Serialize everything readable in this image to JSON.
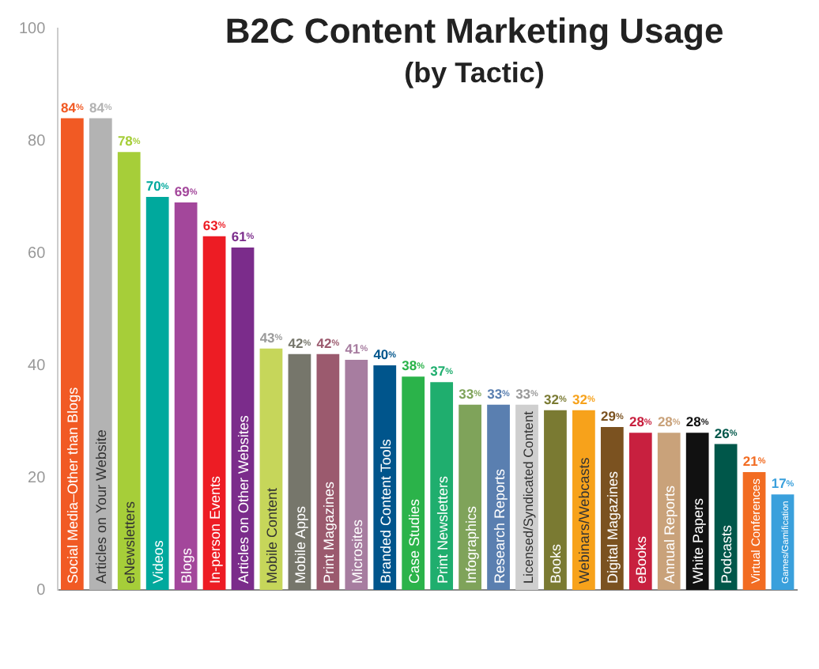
{
  "chart_data": {
    "type": "bar",
    "title": "B2C Content Marketing Usage",
    "subtitle": "(by Tactic)",
    "categories": [
      "Social Media–Other than Blogs",
      "Articles on Your Website",
      "eNewsletters",
      "Videos",
      "Blogs",
      "In-person Events",
      "Articles on Other Websites",
      "Mobile Content",
      "Mobile Apps",
      "Print Magazines",
      "Microsites",
      "Branded Content Tools",
      "Case Studies",
      "Print Newsletters",
      "Infographics",
      "Research Reports",
      "Licensed/Syndicated Content",
      "Books",
      "Webinars/Webcasts",
      "Digital Magazines",
      "eBooks",
      "Annual Reports",
      "White Papers",
      "Podcasts",
      "Virtual Conferences",
      "Games/Gamification"
    ],
    "values": [
      84,
      84,
      78,
      70,
      69,
      63,
      61,
      43,
      42,
      42,
      41,
      40,
      38,
      37,
      33,
      33,
      33,
      32,
      32,
      29,
      28,
      28,
      28,
      26,
      21,
      17
    ],
    "value_labels": [
      "84%",
      "84%",
      "78%",
      "70%",
      "69%",
      "63%",
      "61%",
      "43%",
      "42%",
      "42%",
      "41%",
      "40%",
      "38%",
      "37%",
      "33%",
      "33%",
      "33%",
      "32%",
      "32%",
      "29%",
      "28%",
      "28%",
      "28%",
      "26%",
      "21%",
      "17%"
    ],
    "colors": [
      "#f15a24",
      "#b3b3b3",
      "#a6ce39",
      "#00a99d",
      "#a3479b",
      "#ed1c24",
      "#7b2c8b",
      "#c6d65a",
      "#76766b",
      "#9b5a6e",
      "#a77da0",
      "#00558c",
      "#2bb34a",
      "#1fae6e",
      "#7fa35a",
      "#5a7fb0",
      "#cfcfcf",
      "#7a7a32",
      "#f7a21b",
      "#7b5220",
      "#c8203f",
      "#c9a27a",
      "#111111",
      "#00574a",
      "#f26c22",
      "#3aa0dc"
    ],
    "ylim": [
      0,
      100
    ],
    "yticks": [
      0,
      20,
      40,
      60,
      80,
      100
    ],
    "grid": false,
    "legend": false,
    "tick_labels": "y"
  }
}
